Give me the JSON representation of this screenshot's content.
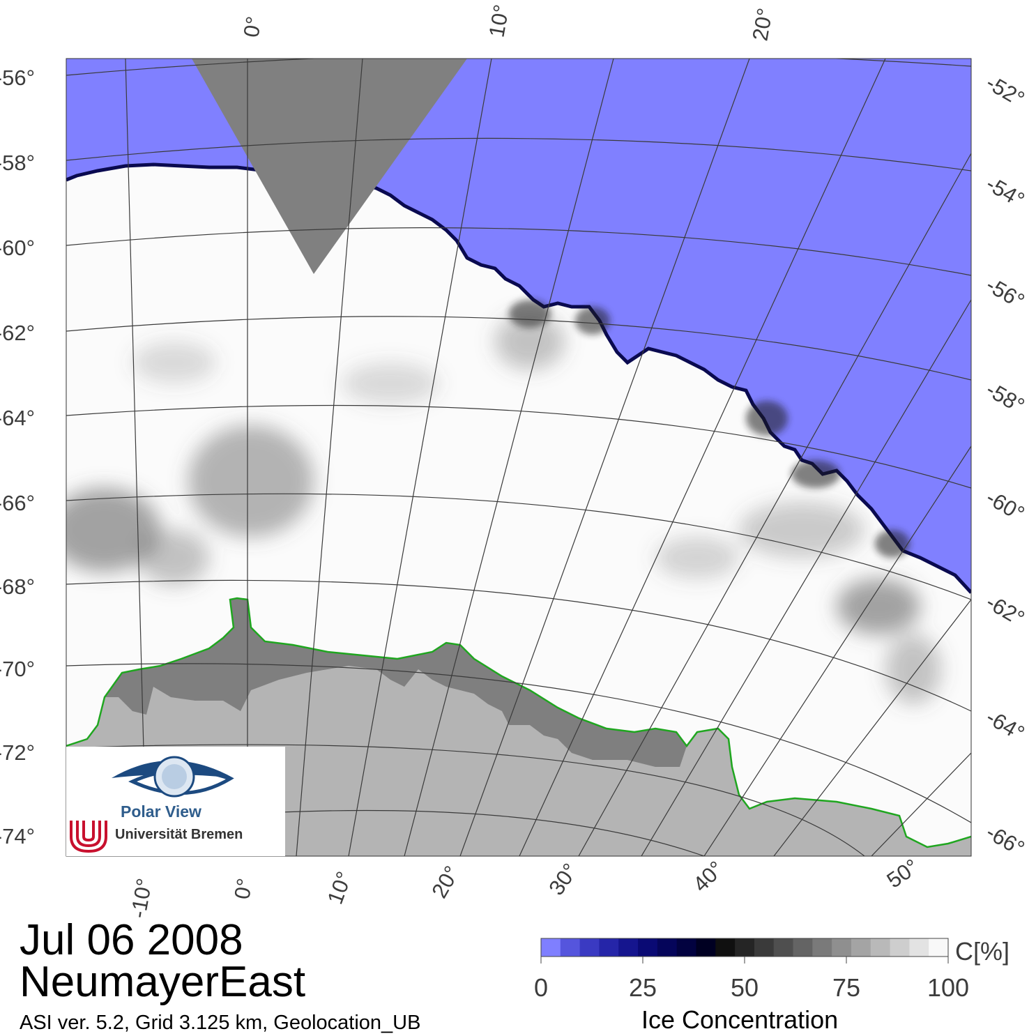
{
  "title": {
    "date": "Jul 06 2008",
    "region": "NeumayerEast"
  },
  "meta": "ASI ver. 5.2,  Grid 3.125 km, Geolocation_UB",
  "logo": {
    "name": "Polar View",
    "institution": "Universität Bremen"
  },
  "map": {
    "top_lon_labels": [
      "0°",
      "10°",
      "20°"
    ],
    "left_lat_labels": [
      "-56°",
      "-58°",
      "-60°",
      "-62°",
      "-64°",
      "-66°",
      "-68°",
      "-70°",
      "-72°",
      "-74°"
    ],
    "right_lat_labels": [
      "-52°",
      "-54°",
      "-56°",
      "-58°",
      "-60°",
      "-62°",
      "-64°",
      "-66°"
    ],
    "bottom_lon_labels": [
      "-10°",
      "0°",
      "10°",
      "20°",
      "30°",
      "40°",
      "50°"
    ],
    "colors": {
      "open_water": "#8080ff",
      "no_data": "#808080",
      "land": "#b4b4b4",
      "ice_shelf": "#7f7f7f",
      "coastline": "#1fa61f",
      "graticule": "#3a3a3a"
    }
  },
  "colorbar": {
    "title": "Ice Concentration",
    "unit": "C[%]",
    "ticks": [
      "0",
      "25",
      "50",
      "75",
      "100"
    ],
    "min": 0,
    "max": 100,
    "colors": [
      "#7f7fff",
      "#5555dd",
      "#3a3ac2",
      "#2525a8",
      "#15158e",
      "#0a0a74",
      "#05055a",
      "#020240",
      "#000022",
      "#101010",
      "#252525",
      "#3a3a3a",
      "#4f4f4f",
      "#646464",
      "#7a7a7a",
      "#8f8f8f",
      "#a4a4a4",
      "#b9b9b9",
      "#cecece",
      "#e3e3e3",
      "#f8f8f8"
    ]
  }
}
